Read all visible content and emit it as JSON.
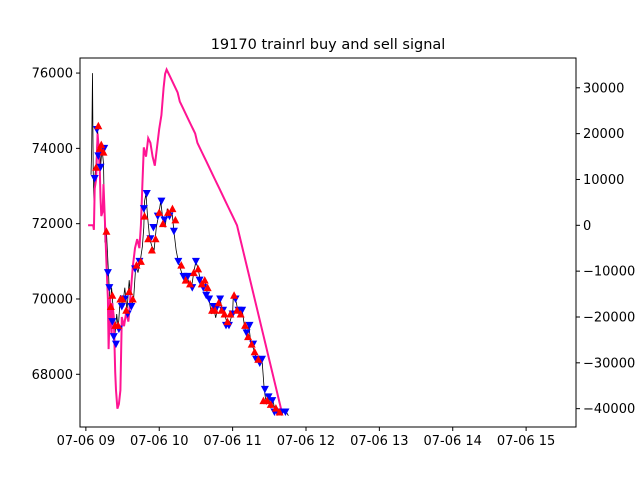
{
  "chart_data": {
    "type": "line",
    "title": "19170 trainrl buy and sell signal",
    "xlabel": "",
    "ylabel": "",
    "y2label": "",
    "x_ticks": [
      "07-06 09",
      "07-06 10",
      "07-06 11",
      "07-06 12",
      "07-06 13",
      "07-06 14",
      "07-06 15"
    ],
    "x_tick_hours": [
      9,
      10,
      11,
      12,
      13,
      14,
      15
    ],
    "xlim": [
      8.92,
      15.68
    ],
    "y_ticks": [
      68000,
      70000,
      72000,
      74000,
      76000
    ],
    "ylim": [
      66600,
      76400
    ],
    "y2_ticks": [
      -40000,
      -30000,
      -20000,
      -10000,
      0,
      10000,
      20000,
      30000
    ],
    "y2lim": [
      -44000,
      36500
    ],
    "legend": "none",
    "grid": false,
    "colors": {
      "price": "#000000",
      "profit": "#ff1493",
      "buy": "#ff0000",
      "sell": "#0000ff"
    },
    "series": [
      {
        "axis": "left",
        "points": [
          [
            9.07,
            73300
          ],
          [
            9.08,
            74000
          ],
          [
            9.09,
            76000
          ],
          [
            9.1,
            73400
          ],
          [
            9.11,
            72600
          ],
          [
            9.12,
            73200
          ],
          [
            9.14,
            73600
          ],
          [
            9.16,
            74600
          ],
          [
            9.17,
            73800
          ],
          [
            9.19,
            74100
          ],
          [
            9.2,
            73500
          ],
          [
            9.22,
            74000
          ],
          [
            9.24,
            73600
          ],
          [
            9.26,
            71500
          ],
          [
            9.28,
            71800
          ],
          [
            9.3,
            71000
          ],
          [
            9.33,
            69800
          ],
          [
            9.35,
            70300
          ],
          [
            9.38,
            69500
          ],
          [
            9.4,
            69100
          ],
          [
            9.42,
            69600
          ],
          [
            9.44,
            69200
          ],
          [
            9.47,
            70100
          ],
          [
            9.5,
            69800
          ],
          [
            9.53,
            70300
          ],
          [
            9.56,
            69700
          ],
          [
            9.59,
            70500
          ],
          [
            9.62,
            69800
          ],
          [
            9.65,
            70000
          ],
          [
            9.68,
            70900
          ],
          [
            9.71,
            70700
          ],
          [
            9.74,
            71000
          ],
          [
            9.77,
            71400
          ],
          [
            9.79,
            71900
          ],
          [
            9.8,
            72600
          ],
          [
            9.82,
            72800
          ],
          [
            9.84,
            72200
          ],
          [
            9.87,
            71600
          ],
          [
            9.9,
            71400
          ],
          [
            9.93,
            71300
          ],
          [
            9.96,
            71900
          ],
          [
            9.99,
            72200
          ],
          [
            10.02,
            72600
          ],
          [
            10.05,
            72100
          ],
          [
            10.08,
            71900
          ],
          [
            10.11,
            72400
          ],
          [
            10.14,
            72200
          ],
          [
            10.17,
            72400
          ],
          [
            10.2,
            71800
          ],
          [
            10.23,
            71300
          ],
          [
            10.26,
            71000
          ],
          [
            10.29,
            70800
          ],
          [
            10.32,
            70600
          ],
          [
            10.35,
            70500
          ],
          [
            10.38,
            70600
          ],
          [
            10.41,
            70400
          ],
          [
            10.44,
            70300
          ],
          [
            10.47,
            70700
          ],
          [
            10.5,
            71000
          ],
          [
            10.53,
            70800
          ],
          [
            10.56,
            70500
          ],
          [
            10.59,
            70300
          ],
          [
            10.62,
            70500
          ],
          [
            10.65,
            70200
          ],
          [
            10.68,
            70000
          ],
          [
            10.71,
            69600
          ],
          [
            10.74,
            69800
          ],
          [
            10.77,
            69500
          ],
          [
            10.8,
            69800
          ],
          [
            10.83,
            70000
          ],
          [
            10.86,
            69700
          ],
          [
            10.89,
            69600
          ],
          [
            10.92,
            69400
          ],
          [
            10.95,
            69300
          ],
          [
            10.98,
            69500
          ],
          [
            11.0,
            69600
          ],
          [
            11.01,
            70100
          ],
          [
            11.04,
            70000
          ],
          [
            11.07,
            69700
          ],
          [
            11.1,
            69600
          ],
          [
            11.13,
            69700
          ],
          [
            11.16,
            69300
          ],
          [
            11.19,
            69000
          ],
          [
            11.22,
            69300
          ],
          [
            11.25,
            68800
          ],
          [
            11.28,
            68700
          ],
          [
            11.31,
            68500
          ],
          [
            11.34,
            68400
          ],
          [
            11.37,
            68300
          ],
          [
            11.4,
            68400
          ],
          [
            11.43,
            67600
          ],
          [
            11.46,
            67200
          ],
          [
            11.49,
            67400
          ],
          [
            11.52,
            67100
          ],
          [
            11.55,
            67300
          ],
          [
            11.58,
            67000
          ],
          [
            11.61,
            67100
          ],
          [
            11.64,
            67000
          ],
          [
            11.67,
            67000
          ],
          [
            11.7,
            67000
          ],
          [
            11.73,
            67000
          ],
          [
            11.76,
            66900
          ]
        ]
      },
      {
        "axis": "right",
        "points": [
          [
            9.03,
            0
          ],
          [
            9.1,
            0
          ],
          [
            9.11,
            -1000
          ],
          [
            9.12,
            8000
          ],
          [
            9.14,
            10000
          ],
          [
            9.16,
            20000
          ],
          [
            9.17,
            18000
          ],
          [
            9.19,
            12000
          ],
          [
            9.2,
            6000
          ],
          [
            9.21,
            2000
          ],
          [
            9.23,
            3000
          ],
          [
            9.24,
            9000
          ],
          [
            9.26,
            1000
          ],
          [
            9.28,
            -8000
          ],
          [
            9.3,
            -16000
          ],
          [
            9.31,
            -27000
          ],
          [
            9.33,
            -16000
          ],
          [
            9.35,
            -24000
          ],
          [
            9.36,
            -17000
          ],
          [
            9.38,
            -20000
          ],
          [
            9.4,
            -32000
          ],
          [
            9.41,
            -36000
          ],
          [
            9.43,
            -40000
          ],
          [
            9.45,
            -39000
          ],
          [
            9.47,
            -36000
          ],
          [
            9.49,
            -20000
          ],
          [
            9.52,
            -22000
          ],
          [
            9.55,
            -19000
          ],
          [
            9.58,
            -21000
          ],
          [
            9.61,
            -15000
          ],
          [
            9.64,
            -9000
          ],
          [
            9.67,
            -5000
          ],
          [
            9.7,
            -3000
          ],
          [
            9.73,
            -5000
          ],
          [
            9.75,
            0
          ],
          [
            9.77,
            9000
          ],
          [
            9.79,
            17000
          ],
          [
            9.82,
            15000
          ],
          [
            9.85,
            19000
          ],
          [
            9.88,
            18000
          ],
          [
            9.91,
            15000
          ],
          [
            9.94,
            13000
          ],
          [
            9.97,
            17000
          ],
          [
            10.0,
            21000
          ],
          [
            10.03,
            24000
          ],
          [
            10.06,
            30000
          ],
          [
            10.08,
            33000
          ],
          [
            10.1,
            34000
          ],
          [
            10.13,
            33000
          ],
          [
            10.16,
            32000
          ],
          [
            10.19,
            31000
          ],
          [
            10.22,
            30000
          ],
          [
            10.25,
            29000
          ],
          [
            10.28,
            27000
          ],
          [
            10.31,
            26000
          ],
          [
            10.34,
            25000
          ],
          [
            10.37,
            24000
          ],
          [
            10.4,
            23000
          ],
          [
            10.43,
            22000
          ],
          [
            10.46,
            21000
          ],
          [
            10.49,
            20000
          ],
          [
            10.52,
            18000
          ],
          [
            10.55,
            17000
          ],
          [
            10.58,
            16000
          ],
          [
            10.61,
            15000
          ],
          [
            10.64,
            14000
          ],
          [
            10.67,
            13000
          ],
          [
            10.7,
            12000
          ],
          [
            10.73,
            11000
          ],
          [
            10.76,
            10000
          ],
          [
            10.79,
            9000
          ],
          [
            10.82,
            8000
          ],
          [
            10.85,
            7000
          ],
          [
            10.88,
            6000
          ],
          [
            10.91,
            5000
          ],
          [
            10.94,
            4000
          ],
          [
            10.97,
            3000
          ],
          [
            11.0,
            2000
          ],
          [
            11.03,
            1000
          ],
          [
            11.06,
            0
          ],
          [
            11.09,
            -2000
          ],
          [
            11.12,
            -4000
          ],
          [
            11.15,
            -6000
          ],
          [
            11.18,
            -8000
          ],
          [
            11.21,
            -10000
          ],
          [
            11.24,
            -12000
          ],
          [
            11.27,
            -14000
          ],
          [
            11.3,
            -16000
          ],
          [
            11.33,
            -18000
          ],
          [
            11.36,
            -20000
          ],
          [
            11.39,
            -22000
          ],
          [
            11.42,
            -24000
          ],
          [
            11.45,
            -26000
          ],
          [
            11.48,
            -28000
          ],
          [
            11.51,
            -30000
          ],
          [
            11.54,
            -32000
          ],
          [
            11.57,
            -34000
          ],
          [
            11.6,
            -36000
          ],
          [
            11.63,
            -38000
          ],
          [
            11.66,
            -40000
          ]
        ]
      }
    ],
    "buy_markers": [
      [
        9.14,
        73500
      ],
      [
        9.17,
        74600
      ],
      [
        9.19,
        74000
      ],
      [
        9.21,
        74100
      ],
      [
        9.24,
        73900
      ],
      [
        9.28,
        71800
      ],
      [
        9.34,
        69800
      ],
      [
        9.36,
        70100
      ],
      [
        9.4,
        69300
      ],
      [
        9.44,
        69300
      ],
      [
        9.47,
        70000
      ],
      [
        9.5,
        70000
      ],
      [
        9.55,
        69700
      ],
      [
        9.59,
        70200
      ],
      [
        9.64,
        70000
      ],
      [
        9.69,
        70900
      ],
      [
        9.75,
        71000
      ],
      [
        9.8,
        72200
      ],
      [
        9.85,
        71600
      ],
      [
        9.9,
        71300
      ],
      [
        9.95,
        71600
      ],
      [
        10.0,
        72300
      ],
      [
        10.05,
        72000
      ],
      [
        10.12,
        72300
      ],
      [
        10.18,
        72400
      ],
      [
        10.22,
        72100
      ],
      [
        10.3,
        70900
      ],
      [
        10.36,
        70500
      ],
      [
        10.42,
        70400
      ],
      [
        10.47,
        70700
      ],
      [
        10.53,
        70800
      ],
      [
        10.58,
        70400
      ],
      [
        10.62,
        70500
      ],
      [
        10.66,
        70300
      ],
      [
        10.72,
        69700
      ],
      [
        10.76,
        69700
      ],
      [
        10.81,
        69900
      ],
      [
        10.85,
        69700
      ],
      [
        10.89,
        69600
      ],
      [
        10.93,
        69400
      ],
      [
        10.97,
        69600
      ],
      [
        11.02,
        70100
      ],
      [
        11.06,
        69700
      ],
      [
        11.11,
        69600
      ],
      [
        11.17,
        69300
      ],
      [
        11.21,
        69000
      ],
      [
        11.26,
        68800
      ],
      [
        11.3,
        68600
      ],
      [
        11.35,
        68400
      ],
      [
        11.42,
        67300
      ],
      [
        11.47,
        67300
      ],
      [
        11.52,
        67200
      ],
      [
        11.59,
        67100
      ],
      [
        11.64,
        67000
      ]
    ],
    "sell_markers": [
      [
        9.12,
        73200
      ],
      [
        9.15,
        74500
      ],
      [
        9.17,
        73800
      ],
      [
        9.2,
        73500
      ],
      [
        9.22,
        73900
      ],
      [
        9.25,
        74000
      ],
      [
        9.3,
        70700
      ],
      [
        9.32,
        70300
      ],
      [
        9.36,
        69400
      ],
      [
        9.38,
        69000
      ],
      [
        9.41,
        68800
      ],
      [
        9.45,
        69200
      ],
      [
        9.49,
        69800
      ],
      [
        9.53,
        70000
      ],
      [
        9.57,
        69600
      ],
      [
        9.62,
        69800
      ],
      [
        9.67,
        70800
      ],
      [
        9.73,
        71000
      ],
      [
        9.79,
        72400
      ],
      [
        9.83,
        72800
      ],
      [
        9.88,
        71600
      ],
      [
        9.92,
        71900
      ],
      [
        9.98,
        72200
      ],
      [
        10.03,
        72600
      ],
      [
        10.07,
        72100
      ],
      [
        10.14,
        72200
      ],
      [
        10.2,
        71800
      ],
      [
        10.26,
        71000
      ],
      [
        10.33,
        70600
      ],
      [
        10.39,
        70600
      ],
      [
        10.45,
        70300
      ],
      [
        10.5,
        71000
      ],
      [
        10.55,
        70500
      ],
      [
        10.6,
        70300
      ],
      [
        10.64,
        70100
      ],
      [
        10.68,
        70000
      ],
      [
        10.74,
        69800
      ],
      [
        10.79,
        69800
      ],
      [
        10.83,
        70000
      ],
      [
        10.87,
        69700
      ],
      [
        10.91,
        69300
      ],
      [
        10.95,
        69300
      ],
      [
        11.0,
        69600
      ],
      [
        11.04,
        70000
      ],
      [
        11.08,
        69700
      ],
      [
        11.13,
        69700
      ],
      [
        11.19,
        69100
      ],
      [
        11.23,
        69300
      ],
      [
        11.28,
        68800
      ],
      [
        11.32,
        68400
      ],
      [
        11.37,
        68300
      ],
      [
        11.4,
        68400
      ],
      [
        11.44,
        67600
      ],
      [
        11.49,
        67400
      ],
      [
        11.54,
        67300
      ],
      [
        11.57,
        67000
      ],
      [
        11.61,
        67000
      ],
      [
        11.67,
        67000
      ],
      [
        11.72,
        67000
      ]
    ]
  }
}
